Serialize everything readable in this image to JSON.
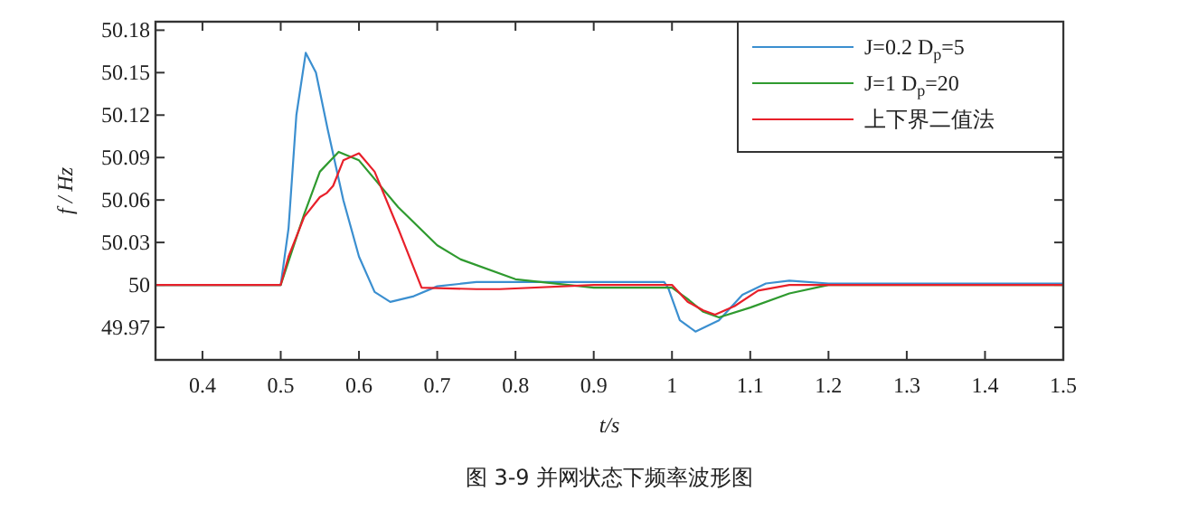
{
  "chart_data": {
    "type": "line",
    "xlabel": "t/s",
    "ylabel": "f / Hz",
    "xlim": [
      0.34,
      1.5
    ],
    "ylim": [
      49.947,
      50.186
    ],
    "xticks": [
      0.4,
      0.5,
      0.6,
      0.7,
      0.8,
      0.9,
      1,
      1.1,
      1.2,
      1.3,
      1.4,
      1.5
    ],
    "yticks": [
      49.97,
      50,
      50.03,
      50.06,
      50.09,
      50.12,
      50.15,
      50.18
    ],
    "legend": "top right",
    "series": [
      {
        "name": "J=0.2 D$_{p}$=5",
        "color": "#3b8fd0",
        "x": [
          0.34,
          0.5,
          0.51,
          0.52,
          0.532,
          0.545,
          0.56,
          0.58,
          0.6,
          0.62,
          0.64,
          0.67,
          0.7,
          0.75,
          0.9,
          0.99,
          0.995,
          1.01,
          1.03,
          1.06,
          1.09,
          1.12,
          1.15,
          1.2,
          1.5
        ],
        "values": [
          50,
          50,
          50.04,
          50.12,
          50.164,
          50.15,
          50.11,
          50.06,
          50.02,
          49.995,
          49.988,
          49.992,
          49.999,
          50.002,
          50.002,
          50.002,
          49.998,
          49.975,
          49.967,
          49.975,
          49.993,
          50.001,
          50.003,
          50.001,
          50.001
        ]
      },
      {
        "name": "J=1 D$_{p}$=20",
        "color": "#2f9a2f",
        "x": [
          0.34,
          0.5,
          0.53,
          0.55,
          0.574,
          0.6,
          0.65,
          0.7,
          0.73,
          0.8,
          0.9,
          1,
          1.02,
          1.04,
          1.06,
          1.1,
          1.15,
          1.2,
          1.5
        ],
        "values": [
          50,
          50,
          50.05,
          50.08,
          50.094,
          50.088,
          50.055,
          50.028,
          50.018,
          50.004,
          49.998,
          49.998,
          49.99,
          49.981,
          49.977,
          49.984,
          49.994,
          50,
          50
        ]
      },
      {
        "name": "上下界二值法",
        "color": "#e8202a",
        "x": [
          0.34,
          0.5,
          0.51,
          0.53,
          0.55,
          0.559,
          0.567,
          0.58,
          0.6,
          0.62,
          0.65,
          0.68,
          0.75,
          0.78,
          0.9,
          1,
          1.02,
          1.04,
          1.055,
          1.08,
          1.11,
          1.15,
          1.5
        ],
        "values": [
          50,
          50,
          50.02,
          50.048,
          50.062,
          50.065,
          50.07,
          50.088,
          50.093,
          50.08,
          50.04,
          49.998,
          49.997,
          49.997,
          50,
          50,
          49.988,
          49.982,
          49.979,
          49.985,
          49.996,
          50,
          50
        ]
      }
    ],
    "annotations": [
      "图 3-9 并网状态下频率波形图"
    ]
  }
}
